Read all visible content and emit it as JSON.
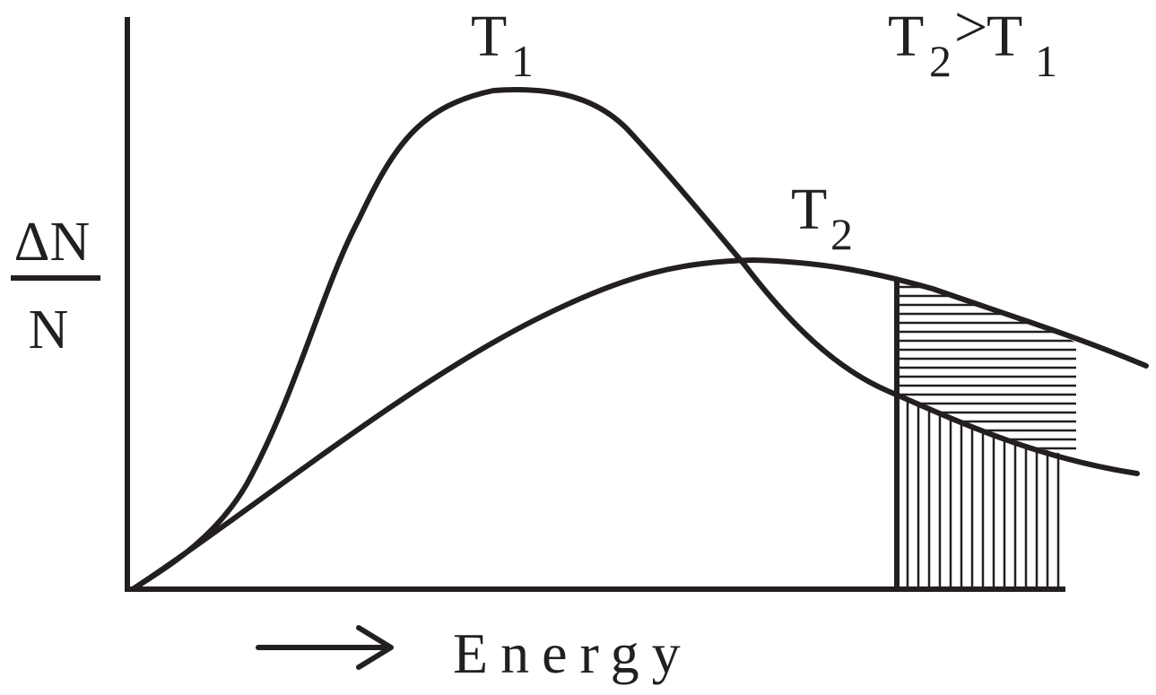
{
  "colors": {
    "ink": "#231f20",
    "background": "#ffffff"
  },
  "labels": {
    "y_numerator": "ΔN",
    "y_denominator": "N",
    "x_axis": "Energy",
    "curve1_letter": "T",
    "curve1_sub": "1",
    "curve2_letter": "T",
    "curve2_sub": "2",
    "relation": {
      "a": "T",
      "a_sub": "2",
      "op": ">",
      "b": "T",
      "b_sub": "1"
    }
  },
  "icons": {
    "x_arrow": "right-arrow-icon"
  }
}
